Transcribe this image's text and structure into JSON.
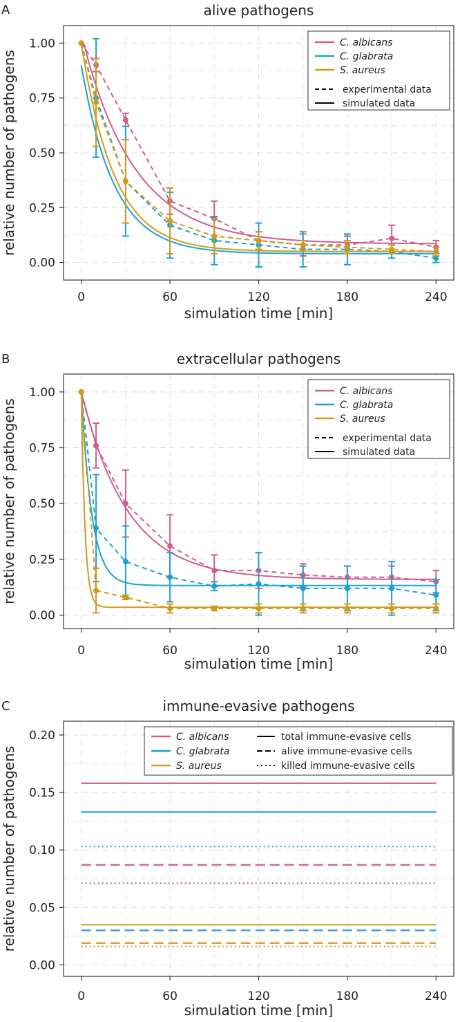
{
  "colors": {
    "c_albicans": "#cf5d8f",
    "c_glabrata": "#1aa2cf",
    "s_aureus": "#d19a1a",
    "grid": "#dddddd",
    "frame": "#333333"
  },
  "chart_data": [
    {
      "type": "line",
      "panel": "A",
      "title": "alive pathogens",
      "xlabel": "simulation time [min]",
      "ylabel": "relative number of pathogens",
      "xlim": [
        -12,
        252
      ],
      "ylim": [
        -0.08,
        1.08
      ],
      "xticks": [
        0,
        60,
        120,
        180,
        240
      ],
      "yticks": [
        0.0,
        0.25,
        0.5,
        0.75,
        1.0
      ],
      "ytick_labels": [
        "0.00",
        "0.25",
        "0.50",
        "0.75",
        "1.00"
      ],
      "legend_position": "top-right",
      "legend": {
        "species": [
          "C. albicans",
          "C. glabrata",
          "S. aureus"
        ],
        "styles": [
          "experimental data",
          "simulated data"
        ]
      },
      "series": [
        {
          "name": "C. albicans",
          "color_key": "c_albicans",
          "experimental_x": [
            0,
            10,
            30,
            60,
            90,
            120,
            150,
            180,
            210,
            240
          ],
          "experimental_y": [
            1.0,
            0.9,
            0.65,
            0.28,
            0.2,
            0.1,
            0.08,
            0.08,
            0.11,
            0.07
          ],
          "error": [
            0.0,
            0.03,
            0.03,
            0.06,
            0.08,
            0.04,
            0.05,
            0.04,
            0.06,
            0.03
          ],
          "simulated": {
            "a": 0.9,
            "c": 0.085,
            "k": 0.028,
            "x0": 2
          }
        },
        {
          "name": "C. glabrata",
          "color_key": "c_glabrata",
          "experimental_x": [
            0,
            10,
            30,
            60,
            90,
            120,
            150,
            180,
            210,
            240
          ],
          "experimental_y": [
            1.0,
            0.75,
            0.37,
            0.17,
            0.1,
            0.08,
            0.06,
            0.06,
            0.05,
            0.02
          ],
          "error": [
            0.0,
            0.27,
            0.25,
            0.15,
            0.11,
            0.1,
            0.08,
            0.07,
            0.03,
            0.02
          ],
          "simulated": {
            "a": 0.86,
            "c": 0.04,
            "k": 0.045,
            "x0": 0
          }
        },
        {
          "name": "S. aureus",
          "color_key": "s_aureus",
          "experimental_x": [
            0,
            10,
            30,
            60,
            90,
            120,
            150,
            180,
            210,
            240
          ],
          "experimental_y": [
            1.0,
            0.73,
            0.37,
            0.19,
            0.12,
            0.1,
            0.08,
            0.07,
            0.06,
            0.05
          ],
          "error": [
            0.0,
            0.2,
            0.19,
            0.15,
            0.08,
            0.04,
            0.02,
            0.03,
            0.02,
            0.02
          ],
          "simulated": {
            "a": 0.95,
            "c": 0.05,
            "k": 0.045,
            "x0": 0
          }
        }
      ]
    },
    {
      "type": "line",
      "panel": "B",
      "title": "extracellular pathogens",
      "xlabel": "simulation time [min]",
      "ylabel": "relative number of pathogens",
      "xlim": [
        -12,
        252
      ],
      "ylim": [
        -0.06,
        1.08
      ],
      "xticks": [
        0,
        60,
        120,
        180,
        240
      ],
      "yticks": [
        0.0,
        0.25,
        0.5,
        0.75,
        1.0
      ],
      "ytick_labels": [
        "0.00",
        "0.25",
        "0.50",
        "0.75",
        "1.00"
      ],
      "legend_position": "top-right",
      "legend": {
        "species": [
          "C. albicans",
          "C. glabrata",
          "S. aureus"
        ],
        "styles": [
          "experimental data",
          "simulated data"
        ]
      },
      "series": [
        {
          "name": "C. albicans",
          "color_key": "c_albicans",
          "experimental_x": [
            0,
            10,
            30,
            60,
            90,
            120,
            150,
            180,
            210,
            240
          ],
          "experimental_y": [
            1.0,
            0.76,
            0.5,
            0.31,
            0.2,
            0.2,
            0.18,
            0.17,
            0.17,
            0.15
          ],
          "error": [
            0.0,
            0.1,
            0.15,
            0.14,
            0.07,
            0.08,
            0.05,
            0.05,
            0.05,
            0.05
          ],
          "simulated": {
            "a": 0.84,
            "c": 0.16,
            "k": 0.032,
            "x0": 0
          }
        },
        {
          "name": "C. glabrata",
          "color_key": "c_glabrata",
          "experimental_x": [
            0,
            10,
            30,
            60,
            90,
            120,
            150,
            180,
            210,
            240
          ],
          "experimental_y": [
            1.0,
            0.39,
            0.24,
            0.17,
            0.13,
            0.14,
            0.12,
            0.12,
            0.12,
            0.09
          ],
          "error": [
            0.0,
            0.24,
            0.16,
            0.11,
            0.02,
            0.14,
            0.1,
            0.1,
            0.12,
            0.07
          ],
          "simulated": {
            "a": 0.867,
            "c": 0.133,
            "k": 0.14,
            "x0": 0
          }
        },
        {
          "name": "S. aureus",
          "color_key": "s_aureus",
          "experimental_x": [
            0,
            10,
            30,
            60,
            90,
            120,
            150,
            180,
            210,
            240
          ],
          "experimental_y": [
            1.0,
            0.11,
            0.08,
            0.03,
            0.03,
            0.03,
            0.03,
            0.03,
            0.03,
            0.03
          ],
          "error": [
            0.0,
            0.1,
            0.01,
            0.02,
            0.01,
            0.02,
            0.02,
            0.02,
            0.02,
            0.02
          ],
          "simulated": {
            "a": 0.965,
            "c": 0.035,
            "k": 0.4,
            "x0": 0
          }
        }
      ]
    },
    {
      "type": "line",
      "panel": "C",
      "title": "immune-evasive pathogens",
      "xlabel": "simulation time [min]",
      "ylabel": "relative number of pathogens",
      "xlim": [
        -12,
        252
      ],
      "ylim": [
        -0.01,
        0.212
      ],
      "xticks": [
        0,
        60,
        120,
        180,
        240
      ],
      "yticks": [
        0.0,
        0.05,
        0.1,
        0.15,
        0.2
      ],
      "ytick_labels": [
        "0.00",
        "0.05",
        "0.10",
        "0.15",
        "0.20"
      ],
      "legend_position": "top-right",
      "legend": {
        "species": [
          "C. albicans",
          "C. glabrata",
          "S. aureus"
        ],
        "styles": [
          "total immune-evasive cells",
          "alive immune-evasive cells",
          "killed immune-evasive cells"
        ]
      },
      "series": [
        {
          "name": "C. albicans",
          "color_key": "c_albicans",
          "total": 0.158,
          "alive": 0.087,
          "killed": 0.071
        },
        {
          "name": "C. glabrata",
          "color_key": "c_glabrata",
          "total": 0.133,
          "alive": 0.03,
          "killed": 0.103
        },
        {
          "name": "S. aureus",
          "color_key": "s_aureus",
          "total": 0.035,
          "alive": 0.019,
          "killed": 0.016
        }
      ]
    }
  ]
}
